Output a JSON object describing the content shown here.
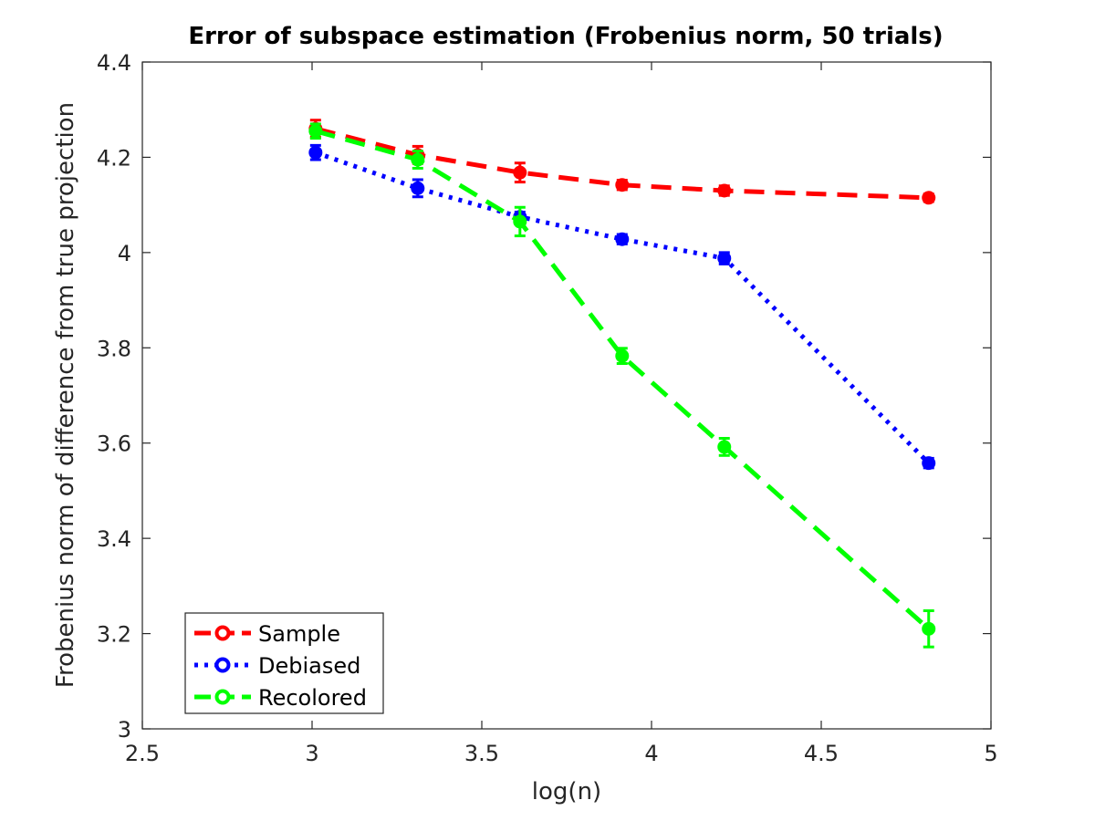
{
  "chart_data": {
    "type": "line",
    "title": "Error of subspace estimation (Frobenius norm, 50 trials)",
    "xlabel": "log(n)",
    "ylabel": "Frobenius norm of difference from true projection",
    "xlim": [
      2.5,
      5
    ],
    "ylim": [
      3,
      4.4
    ],
    "xticks": [
      "2.5",
      "3",
      "3.5",
      "4",
      "4.5",
      "5"
    ],
    "yticks": [
      "3",
      "3.2",
      "3.4",
      "3.6",
      "3.8",
      "4",
      "4.2",
      "4.4"
    ],
    "grid": false,
    "legend_position": "bottom-left",
    "x": [
      3.0103,
      3.3113,
      3.6124,
      3.9134,
      4.2144,
      4.8165
    ],
    "series": [
      {
        "name": "Sample",
        "color": "#ff0000",
        "dash": "dashed",
        "values": [
          4.26,
          4.205,
          4.168,
          4.142,
          4.13,
          4.115
        ],
        "errors": [
          0.018,
          0.018,
          0.02,
          0.01,
          0.01,
          0.008
        ]
      },
      {
        "name": "Debiased",
        "color": "#0000ff",
        "dash": "dotted",
        "values": [
          4.21,
          4.135,
          4.075,
          4.028,
          3.988,
          3.558
        ],
        "errors": [
          0.015,
          0.018,
          0.01,
          0.01,
          0.012,
          0.01
        ]
      },
      {
        "name": "Recolored",
        "color": "#00ff00",
        "dash": "dashed",
        "values": [
          4.255,
          4.195,
          4.065,
          3.783,
          3.592,
          3.21
        ],
        "errors": [
          0.015,
          0.018,
          0.03,
          0.016,
          0.018,
          0.038
        ]
      }
    ]
  }
}
